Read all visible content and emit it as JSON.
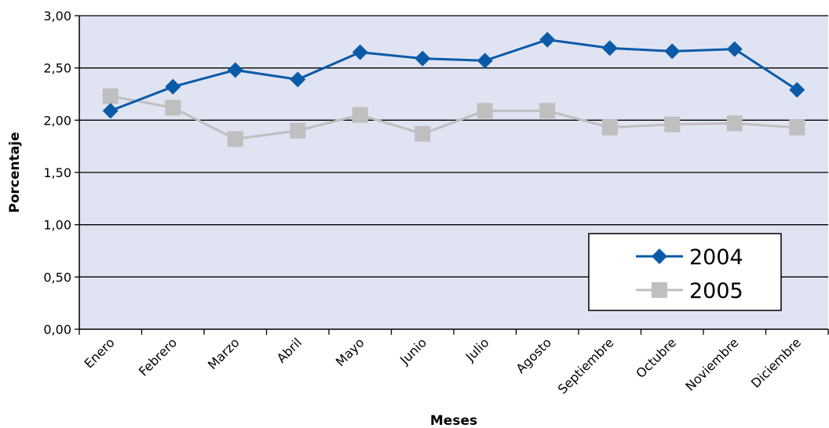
{
  "chart_data": {
    "type": "line",
    "title": "",
    "xlabel": "Meses",
    "ylabel": "Porcentaje",
    "categories": [
      "Enero",
      "Febrero",
      "Marzo",
      "Abril",
      "Mayo",
      "Junio",
      "Julio",
      "Agosto",
      "Septiembre",
      "Octubre",
      "Noviembre",
      "Diciembre"
    ],
    "yticks": [
      "0,00",
      "0,50",
      "1,00",
      "1,50",
      "2,00",
      "2,50",
      "3,00"
    ],
    "ylim": [
      0,
      3
    ],
    "grid": true,
    "legend_position": "bottom-right",
    "plot_background": "#dfe3f2",
    "series": [
      {
        "name": "2004",
        "marker": "diamond",
        "color": "#0a5aa8",
        "values": [
          2.09,
          2.32,
          2.48,
          2.39,
          2.65,
          2.59,
          2.57,
          2.77,
          2.69,
          2.66,
          2.68,
          2.29
        ]
      },
      {
        "name": "2005",
        "marker": "square",
        "color": "#bfbfbf",
        "values": [
          2.23,
          2.12,
          1.82,
          1.9,
          2.05,
          1.87,
          2.09,
          2.09,
          1.93,
          1.96,
          1.97,
          1.93
        ]
      }
    ]
  }
}
